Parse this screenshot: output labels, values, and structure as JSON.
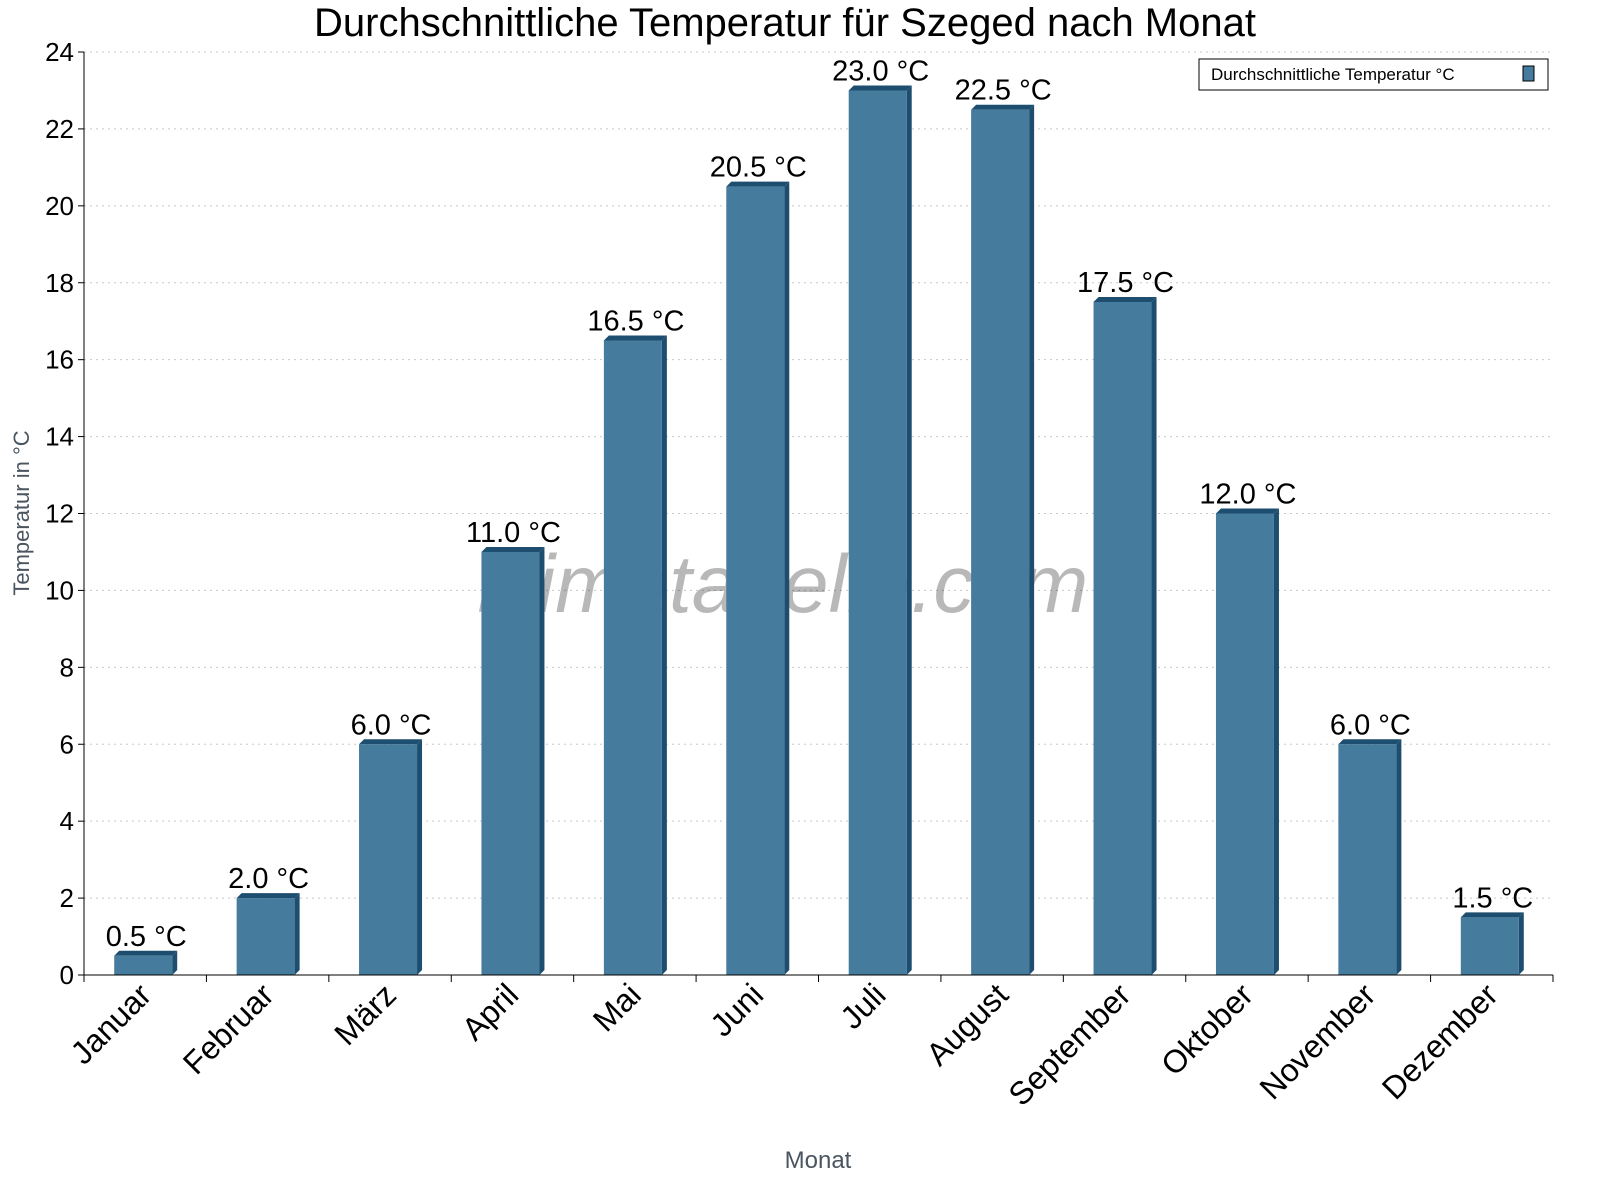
{
  "chart_data": {
    "type": "bar",
    "title": "Durchschnittliche Temperatur für Szeged nach Monat",
    "xlabel": "Monat",
    "ylabel": "Temperatur in °C",
    "categories": [
      "Januar",
      "Februar",
      "März",
      "April",
      "Mai",
      "Juni",
      "Juli",
      "August",
      "September",
      "Oktober",
      "November",
      "Dezember"
    ],
    "series": [
      {
        "name": "Durchschnittliche Temperatur °C",
        "values": [
          0.5,
          2.0,
          6.0,
          11.0,
          16.5,
          20.5,
          23.0,
          22.5,
          17.5,
          12.0,
          6.0,
          1.5
        ],
        "color": "#457b9d",
        "shade_color": "#1d4e6f"
      }
    ],
    "data_labels": [
      "0.5 °C",
      "2.0 °C",
      "6.0 °C",
      "11.0 °C",
      "16.5 °C",
      "20.5 °C",
      "23.0 °C",
      "22.5 °C",
      "17.5 °C",
      "12.0 °C",
      "6.0 °C",
      "1.5 °C"
    ],
    "ylim": [
      0,
      24
    ],
    "yticks": [
      0,
      2,
      4,
      6,
      8,
      10,
      12,
      14,
      16,
      18,
      20,
      22,
      24
    ],
    "grid": true,
    "legend": {
      "position": "top-right",
      "label": "Durchschnittliche Temperatur °C"
    },
    "watermark": "klimatabelle.com"
  }
}
